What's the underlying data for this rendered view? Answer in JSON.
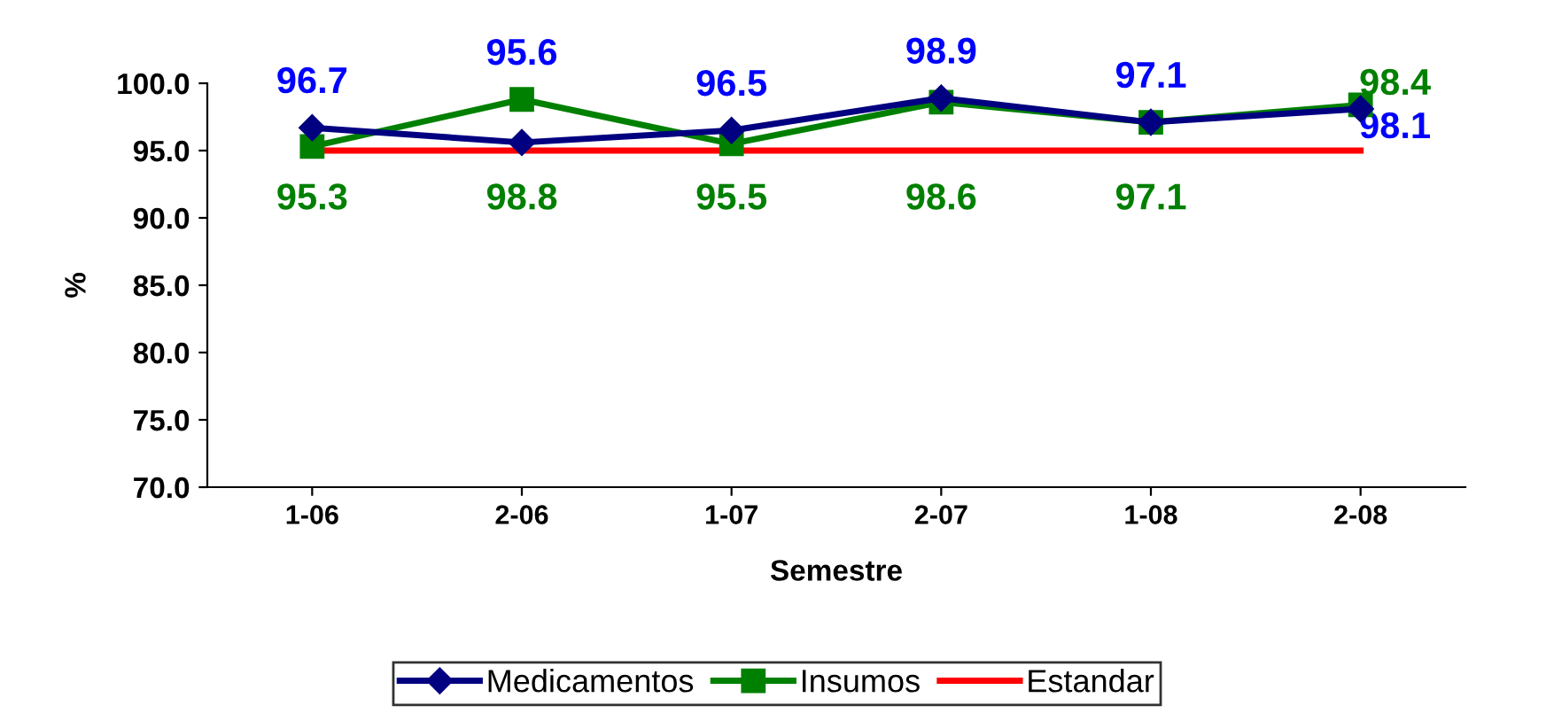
{
  "chart_data": {
    "type": "line",
    "xlabel": "Semestre",
    "ylabel": "%",
    "categories": [
      "1-06",
      "2-06",
      "1-07",
      "2-07",
      "1-08",
      "2-08"
    ],
    "ylim": [
      70,
      100
    ],
    "yticks": [
      {
        "value": 70,
        "label": "70.0"
      },
      {
        "value": 75,
        "label": "75.0"
      },
      {
        "value": 80,
        "label": "80.0"
      },
      {
        "value": 85,
        "label": "85.0"
      },
      {
        "value": 90,
        "label": "90.0"
      },
      {
        "value": 95,
        "label": "95.0"
      },
      {
        "value": 100,
        "label": "100.0"
      }
    ],
    "grid": false,
    "legend": "bottom",
    "series": [
      {
        "name": "Medicamentos",
        "color": "#000080",
        "marker": "diamond",
        "values": [
          96.7,
          95.6,
          96.5,
          98.9,
          97.1,
          98.1
        ],
        "value_labels": [
          "96.7",
          "95.6",
          "96.5",
          "98.9",
          "97.1",
          "98.1"
        ]
      },
      {
        "name": "Insumos",
        "color": "#008000",
        "marker": "square",
        "values": [
          95.3,
          98.8,
          95.5,
          98.6,
          97.1,
          98.4
        ],
        "value_labels": [
          "95.3",
          "98.8",
          "95.5",
          "98.6",
          "97.1",
          "98.4"
        ]
      },
      {
        "name": "Estandar",
        "color": "#ff0000",
        "marker": "none",
        "values": [
          95,
          95,
          95,
          95,
          95,
          95
        ]
      }
    ]
  }
}
